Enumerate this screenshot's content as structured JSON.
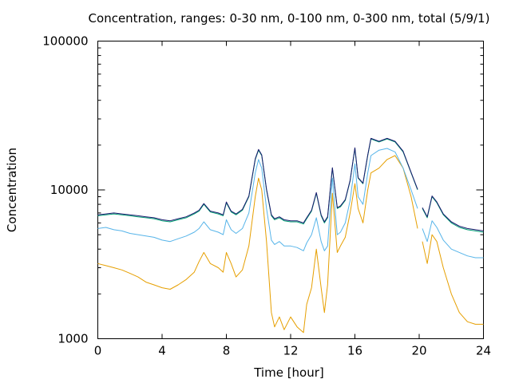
{
  "chart_data": {
    "type": "line",
    "title": "Concentration, ranges: 0-30 nm, 0-100 nm, 0-300 nm, total (5/9/1)",
    "xlabel": "Time [hour]",
    "ylabel": "Concentration",
    "x_tick_labels": [
      "0",
      "4",
      "8",
      "12",
      "16",
      "20",
      "24"
    ],
    "y_tick_labels": [
      "1000",
      "10000",
      "100000"
    ],
    "xlim": [
      0,
      24
    ],
    "ylim": [
      1000,
      100000
    ],
    "yscale": "log",
    "grid": false,
    "legend": "none",
    "x_ticks": [
      0,
      4,
      8,
      12,
      16,
      20,
      24
    ],
    "y_ticks": [
      1000,
      10000,
      100000
    ],
    "series": [
      {
        "color": "#e69f00",
        "x": [
          0,
          0.5,
          1,
          1.5,
          2,
          2.5,
          3,
          3.5,
          4,
          4.5,
          5,
          5.5,
          6,
          6.3,
          6.6,
          7,
          7.5,
          7.8,
          8,
          8.3,
          8.6,
          9,
          9.4,
          9.8,
          10,
          10.2,
          10.5,
          10.8,
          11,
          11.3,
          11.6,
          12,
          12.4,
          12.8,
          13,
          13.3,
          13.6,
          13.9,
          14.1,
          14.3,
          14.6,
          14.9,
          15.1,
          15.4,
          15.7,
          16,
          16.2,
          16.5,
          16.8,
          17,
          17.5,
          18,
          18.5,
          19,
          19.5,
          19.9,
          null,
          20.2,
          20.5,
          20.8,
          21.1,
          21.5,
          22,
          22.5,
          23,
          23.5,
          24
        ],
        "values": [
          3200,
          3100,
          3000,
          2900,
          2750,
          2600,
          2400,
          2300,
          2200,
          2150,
          2300,
          2500,
          2800,
          3300,
          3800,
          3200,
          3000,
          2800,
          3800,
          3200,
          2600,
          2900,
          4200,
          9000,
          12000,
          10000,
          4500,
          1500,
          1200,
          1400,
          1150,
          1400,
          1200,
          1100,
          1700,
          2200,
          4000,
          2200,
          1500,
          2300,
          9500,
          3800,
          4200,
          4800,
          7000,
          11000,
          7500,
          6000,
          10000,
          13000,
          14000,
          16000,
          17000,
          14000,
          9000,
          5500,
          null,
          4500,
          3200,
          5000,
          4500,
          3000,
          2000,
          1500,
          1300,
          1250,
          1250
        ]
      },
      {
        "color": "#56b4e9",
        "x": [
          0,
          0.5,
          1,
          1.5,
          2,
          2.5,
          3,
          3.5,
          4,
          4.5,
          5,
          5.5,
          6,
          6.3,
          6.6,
          7,
          7.5,
          7.8,
          8,
          8.3,
          8.6,
          9,
          9.4,
          9.8,
          10,
          10.2,
          10.5,
          10.8,
          11,
          11.3,
          11.6,
          12,
          12.4,
          12.8,
          13,
          13.3,
          13.6,
          13.9,
          14.1,
          14.3,
          14.6,
          14.9,
          15.1,
          15.4,
          15.7,
          16,
          16.2,
          16.5,
          16.8,
          17,
          17.5,
          18,
          18.5,
          19,
          19.5,
          19.9,
          null,
          20.2,
          20.5,
          20.8,
          21.1,
          21.5,
          22,
          22.5,
          23,
          23.5,
          24
        ],
        "values": [
          5500,
          5600,
          5400,
          5300,
          5100,
          5000,
          4900,
          4800,
          4600,
          4500,
          4700,
          4900,
          5200,
          5500,
          6100,
          5400,
          5200,
          5000,
          6300,
          5400,
          5100,
          5500,
          7000,
          13000,
          16000,
          14000,
          7500,
          4600,
          4300,
          4500,
          4200,
          4200,
          4100,
          3900,
          4400,
          5000,
          6500,
          4500,
          3900,
          4200,
          12000,
          5000,
          5200,
          6000,
          8500,
          15000,
          9000,
          8000,
          13000,
          17000,
          18500,
          19000,
          18000,
          14000,
          10000,
          7500,
          null,
          5500,
          4500,
          6200,
          5600,
          4600,
          4000,
          3800,
          3600,
          3500,
          3500
        ]
      },
      {
        "color": "#009e73",
        "x": [
          0,
          0.5,
          1,
          1.5,
          2,
          2.5,
          3,
          3.5,
          4,
          4.5,
          5,
          5.5,
          6,
          6.3,
          6.6,
          7,
          7.5,
          7.8,
          8,
          8.3,
          8.6,
          9,
          9.4,
          9.8,
          10,
          10.2,
          10.5,
          10.8,
          11,
          11.3,
          11.6,
          12,
          12.4,
          12.8,
          13,
          13.3,
          13.6,
          13.9,
          14.1,
          14.3,
          14.6,
          14.9,
          15.1,
          15.4,
          15.7,
          16,
          16.2,
          16.5,
          16.8,
          17,
          17.5,
          18,
          18.5,
          19,
          19.5,
          19.9,
          null,
          20.2,
          20.5,
          20.8,
          21.1,
          21.5,
          22,
          22.5,
          23,
          23.5,
          24
        ],
        "values": [
          6700,
          6800,
          6900,
          6800,
          6700,
          6600,
          6500,
          6400,
          6200,
          6100,
          6300,
          6500,
          6900,
          7200,
          8000,
          7100,
          6900,
          6700,
          8200,
          7100,
          6800,
          7300,
          9000,
          16000,
          18500,
          17000,
          10000,
          6700,
          6300,
          6500,
          6200,
          6100,
          6100,
          5900,
          6400,
          7200,
          9500,
          6700,
          6000,
          6500,
          14000,
          7500,
          7700,
          8500,
          11500,
          19000,
          12000,
          11000,
          17000,
          22000,
          21000,
          22000,
          21000,
          18000,
          13000,
          10000,
          null,
          7500,
          6500,
          9000,
          8200,
          6800,
          6000,
          5600,
          5400,
          5300,
          5200
        ]
      },
      {
        "color": "#1a1a6e",
        "x": [
          0,
          0.5,
          1,
          1.5,
          2,
          2.5,
          3,
          3.5,
          4,
          4.5,
          5,
          5.5,
          6,
          6.3,
          6.6,
          7,
          7.5,
          7.8,
          8,
          8.3,
          8.6,
          9,
          9.4,
          9.8,
          10,
          10.2,
          10.5,
          10.8,
          11,
          11.3,
          11.6,
          12,
          12.4,
          12.8,
          13,
          13.3,
          13.6,
          13.9,
          14.1,
          14.3,
          14.6,
          14.9,
          15.1,
          15.4,
          15.7,
          16,
          16.2,
          16.5,
          16.8,
          17,
          17.5,
          18,
          18.5,
          19,
          19.5,
          19.9,
          null,
          20.2,
          20.5,
          20.8,
          21.1,
          21.5,
          22,
          22.5,
          23,
          23.5,
          24
        ],
        "values": [
          6800,
          6900,
          7000,
          6900,
          6800,
          6700,
          6600,
          6500,
          6300,
          6200,
          6400,
          6600,
          7000,
          7300,
          8100,
          7200,
          7000,
          6800,
          8300,
          7200,
          6900,
          7400,
          9100,
          16200,
          18700,
          17200,
          10100,
          6800,
          6400,
          6600,
          6300,
          6200,
          6200,
          6000,
          6500,
          7300,
          9600,
          6800,
          6100,
          6600,
          14100,
          7600,
          7800,
          8600,
          11600,
          19200,
          12100,
          11100,
          17200,
          22200,
          21200,
          22200,
          21200,
          18200,
          13100,
          10100,
          null,
          7600,
          6600,
          9100,
          8300,
          6900,
          6100,
          5700,
          5500,
          5400,
          5300
        ]
      }
    ]
  }
}
